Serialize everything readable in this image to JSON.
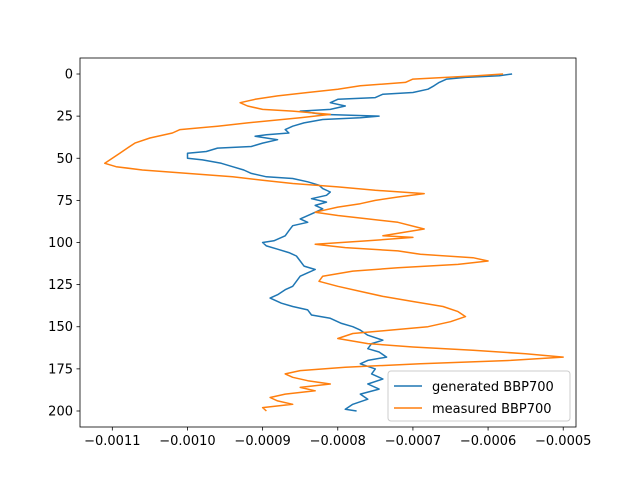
{
  "chart_data": {
    "type": "line",
    "title": "",
    "xlabel": "",
    "ylabel": "",
    "xlim": [
      -0.001143,
      -0.000483
    ],
    "ylim": [
      209.5,
      -9.5
    ],
    "y_inverted": true,
    "grid": false,
    "legend_position": "lower right",
    "xticks": [
      {
        "value": -0.0011,
        "label": "−0.0011"
      },
      {
        "value": -0.001,
        "label": "−0.0010"
      },
      {
        "value": -0.0009,
        "label": "−0.0009"
      },
      {
        "value": -0.0008,
        "label": "−0.0008"
      },
      {
        "value": -0.0007,
        "label": "−0.0007"
      },
      {
        "value": -0.0006,
        "label": "−0.0006"
      },
      {
        "value": -0.0005,
        "label": "−0.0005"
      }
    ],
    "yticks": [
      {
        "value": 0,
        "label": "0"
      },
      {
        "value": 25,
        "label": "25"
      },
      {
        "value": 50,
        "label": "50"
      },
      {
        "value": 75,
        "label": "75"
      },
      {
        "value": 100,
        "label": "100"
      },
      {
        "value": 125,
        "label": "125"
      },
      {
        "value": 150,
        "label": "150"
      },
      {
        "value": 175,
        "label": "175"
      },
      {
        "value": 200,
        "label": "200"
      }
    ],
    "series": [
      {
        "name": "generated BBP700",
        "color": "#1f77b4",
        "points": [
          [
            -0.000568,
            0
          ],
          [
            -0.000585,
            1
          ],
          [
            -0.00063,
            2
          ],
          [
            -0.000655,
            3
          ],
          [
            -0.000665,
            5
          ],
          [
            -0.000672,
            7
          ],
          [
            -0.00068,
            9
          ],
          [
            -0.0007,
            11
          ],
          [
            -0.00074,
            12
          ],
          [
            -0.00075,
            14
          ],
          [
            -0.0008,
            15
          ],
          [
            -0.00081,
            17
          ],
          [
            -0.00079,
            19
          ],
          [
            -0.00081,
            21
          ],
          [
            -0.00085,
            22
          ],
          [
            -0.00082,
            24
          ],
          [
            -0.000745,
            25
          ],
          [
            -0.00077,
            26
          ],
          [
            -0.00082,
            27
          ],
          [
            -0.000845,
            29
          ],
          [
            -0.00086,
            31
          ],
          [
            -0.00087,
            33
          ],
          [
            -0.000865,
            35
          ],
          [
            -0.000895,
            36
          ],
          [
            -0.00091,
            37
          ],
          [
            -0.00088,
            39
          ],
          [
            -0.0009,
            41
          ],
          [
            -0.000915,
            43
          ],
          [
            -0.00096,
            44
          ],
          [
            -0.000975,
            46
          ],
          [
            -0.001,
            47
          ],
          [
            -0.001,
            50
          ],
          [
            -0.00098,
            51
          ],
          [
            -0.000955,
            53
          ],
          [
            -0.00094,
            55
          ],
          [
            -0.000925,
            57
          ],
          [
            -0.000915,
            59
          ],
          [
            -0.000895,
            61
          ],
          [
            -0.00086,
            62
          ],
          [
            -0.00084,
            64
          ],
          [
            -0.000825,
            66
          ],
          [
            -0.00082,
            68
          ],
          [
            -0.00081,
            70
          ],
          [
            -0.000815,
            72
          ],
          [
            -0.000835,
            74
          ],
          [
            -0.000815,
            76
          ],
          [
            -0.00083,
            78
          ],
          [
            -0.00082,
            80
          ],
          [
            -0.000835,
            83
          ],
          [
            -0.00085,
            86
          ],
          [
            -0.00084,
            88
          ],
          [
            -0.00086,
            90
          ],
          [
            -0.000865,
            93
          ],
          [
            -0.00087,
            96
          ],
          [
            -0.000885,
            99
          ],
          [
            -0.0009,
            100
          ],
          [
            -0.000895,
            102
          ],
          [
            -0.00088,
            104
          ],
          [
            -0.000865,
            106
          ],
          [
            -0.000855,
            108
          ],
          [
            -0.00085,
            111
          ],
          [
            -0.000845,
            114
          ],
          [
            -0.00083,
            116
          ],
          [
            -0.00084,
            118
          ],
          [
            -0.00085,
            120
          ],
          [
            -0.000855,
            123
          ],
          [
            -0.00086,
            126
          ],
          [
            -0.00087,
            128
          ],
          [
            -0.00088,
            131
          ],
          [
            -0.00089,
            133
          ],
          [
            -0.000875,
            136
          ],
          [
            -0.00086,
            138
          ],
          [
            -0.00084,
            140
          ],
          [
            -0.000835,
            143
          ],
          [
            -0.00081,
            145
          ],
          [
            -0.000795,
            148
          ],
          [
            -0.00078,
            150
          ],
          [
            -0.00077,
            152
          ],
          [
            -0.00076,
            155
          ],
          [
            -0.00074,
            158
          ],
          [
            -0.000755,
            160
          ],
          [
            -0.00076,
            163
          ],
          [
            -0.000745,
            165
          ],
          [
            -0.000735,
            168
          ],
          [
            -0.00076,
            170
          ],
          [
            -0.00077,
            172
          ],
          [
            -0.00075,
            175
          ],
          [
            -0.000755,
            178
          ],
          [
            -0.00074,
            181
          ],
          [
            -0.00076,
            184
          ],
          [
            -0.000745,
            187
          ],
          [
            -0.00077,
            190
          ],
          [
            -0.00076,
            193
          ],
          [
            -0.00078,
            196
          ],
          [
            -0.00079,
            199
          ],
          [
            -0.000775,
            200
          ]
        ]
      },
      {
        "name": "measured BBP700",
        "color": "#ff7f0e",
        "points": [
          [
            -0.00058,
            0
          ],
          [
            -0.000615,
            1
          ],
          [
            -0.0007,
            3
          ],
          [
            -0.00071,
            5
          ],
          [
            -0.00077,
            7
          ],
          [
            -0.0008,
            9
          ],
          [
            -0.00084,
            11
          ],
          [
            -0.00088,
            13
          ],
          [
            -0.00091,
            15
          ],
          [
            -0.00093,
            17
          ],
          [
            -0.00092,
            19
          ],
          [
            -0.0009,
            21
          ],
          [
            -0.00086,
            22
          ],
          [
            -0.00081,
            24
          ],
          [
            -0.00085,
            26
          ],
          [
            -0.00092,
            29
          ],
          [
            -0.00096,
            31
          ],
          [
            -0.00101,
            33
          ],
          [
            -0.00102,
            35
          ],
          [
            -0.00105,
            38
          ],
          [
            -0.00107,
            41
          ],
          [
            -0.00108,
            44
          ],
          [
            -0.00109,
            47
          ],
          [
            -0.0011,
            50
          ],
          [
            -0.00111,
            53
          ],
          [
            -0.001095,
            55
          ],
          [
            -0.00106,
            57
          ],
          [
            -0.001,
            59
          ],
          [
            -0.00094,
            61
          ],
          [
            -0.0009,
            63
          ],
          [
            -0.00086,
            65
          ],
          [
            -0.0008,
            67
          ],
          [
            -0.00075,
            69
          ],
          [
            -0.000685,
            71
          ],
          [
            -0.00072,
            73
          ],
          [
            -0.00075,
            75
          ],
          [
            -0.00077,
            77
          ],
          [
            -0.0008,
            79
          ],
          [
            -0.00083,
            82
          ],
          [
            -0.0008,
            84
          ],
          [
            -0.00076,
            86
          ],
          [
            -0.00072,
            88
          ],
          [
            -0.000685,
            92
          ],
          [
            -0.00074,
            96
          ],
          [
            -0.0007,
            97
          ],
          [
            -0.00076,
            99
          ],
          [
            -0.00083,
            101
          ],
          [
            -0.00079,
            103
          ],
          [
            -0.00072,
            105
          ],
          [
            -0.00069,
            107
          ],
          [
            -0.00062,
            109
          ],
          [
            -0.0006,
            111
          ],
          [
            -0.00064,
            113
          ],
          [
            -0.00072,
            115
          ],
          [
            -0.00078,
            117
          ],
          [
            -0.00082,
            120
          ],
          [
            -0.000825,
            123
          ],
          [
            -0.0008,
            126
          ],
          [
            -0.00077,
            129
          ],
          [
            -0.00074,
            132
          ],
          [
            -0.0007,
            135
          ],
          [
            -0.00066,
            138
          ],
          [
            -0.00064,
            141
          ],
          [
            -0.00063,
            144
          ],
          [
            -0.00065,
            147
          ],
          [
            -0.00068,
            150
          ],
          [
            -0.00073,
            152
          ],
          [
            -0.00078,
            154
          ],
          [
            -0.0008,
            157
          ],
          [
            -0.00076,
            160
          ],
          [
            -0.0007,
            162
          ],
          [
            -0.00062,
            164
          ],
          [
            -0.00055,
            166
          ],
          [
            -0.0005,
            168
          ],
          [
            -0.00057,
            170
          ],
          [
            -0.00069,
            172
          ],
          [
            -0.00079,
            174
          ],
          [
            -0.00085,
            176
          ],
          [
            -0.00087,
            178
          ],
          [
            -0.00086,
            180
          ],
          [
            -0.00084,
            182
          ],
          [
            -0.00081,
            184
          ],
          [
            -0.00085,
            186
          ],
          [
            -0.00083,
            188
          ],
          [
            -0.00087,
            190
          ],
          [
            -0.00089,
            192
          ],
          [
            -0.00088,
            194
          ],
          [
            -0.00086,
            196
          ],
          [
            -0.0009,
            198
          ],
          [
            -0.000895,
            200
          ]
        ]
      }
    ]
  }
}
